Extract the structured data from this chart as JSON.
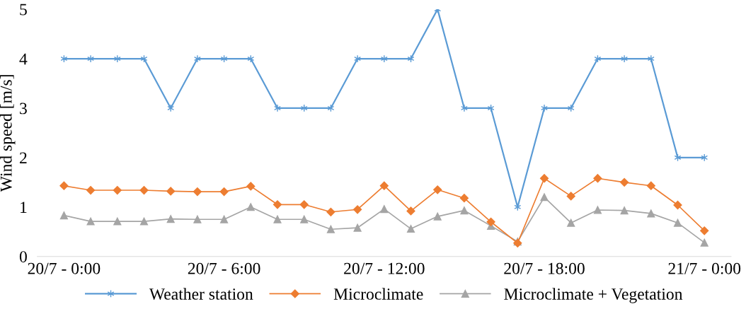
{
  "chart_data": {
    "type": "line",
    "ylabel": "Wind speed [m/s]",
    "categories": [
      "20/7 - 0:00",
      null,
      null,
      null,
      null,
      null,
      "20/7 - 6:00",
      null,
      null,
      null,
      null,
      null,
      "20/7 - 12:00",
      null,
      null,
      null,
      null,
      null,
      "20/7 - 18:00",
      null,
      null,
      null,
      null,
      null,
      "21/7 - 0:00"
    ],
    "ylim": [
      0,
      5
    ],
    "yticks": [
      0,
      1,
      2,
      3,
      4,
      5
    ],
    "grid": false,
    "legend": "bottom",
    "series": [
      {
        "name": "Weather station",
        "color": "#5b9bd5",
        "marker": "cross",
        "values": [
          4,
          4,
          4,
          4,
          3,
          4,
          4,
          4,
          3,
          3,
          3,
          4,
          4,
          4,
          5,
          3,
          3,
          1,
          3,
          3,
          4,
          4,
          4,
          2,
          2
        ]
      },
      {
        "name": "Microclimate",
        "color": "#ed7d31",
        "marker": "diamond",
        "values": [
          1.43,
          1.34,
          1.34,
          1.34,
          1.32,
          1.31,
          1.31,
          1.42,
          1.05,
          1.05,
          0.9,
          0.95,
          1.43,
          0.92,
          1.35,
          1.18,
          0.7,
          0.27,
          1.58,
          1.22,
          1.58,
          1.5,
          1.43,
          1.04,
          0.52
        ]
      },
      {
        "name": "Microclimate + Vegetation",
        "color": "#a5a5a5",
        "marker": "triangle",
        "values": [
          0.83,
          0.71,
          0.71,
          0.71,
          0.76,
          0.75,
          0.75,
          1.0,
          0.75,
          0.75,
          0.55,
          0.58,
          0.96,
          0.56,
          0.81,
          0.93,
          0.62,
          0.3,
          1.2,
          0.68,
          0.94,
          0.93,
          0.87,
          0.68,
          0.28
        ]
      }
    ]
  }
}
